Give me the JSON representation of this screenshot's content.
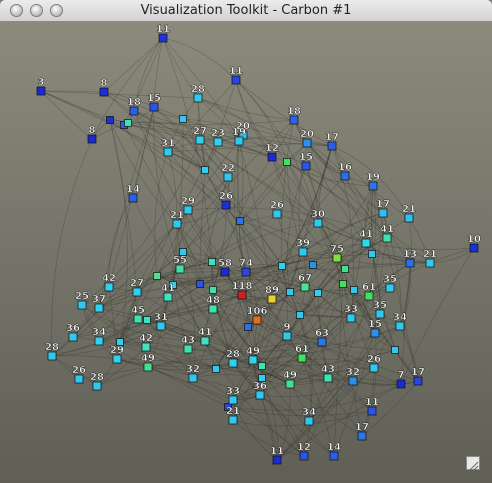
{
  "window": {
    "title": "Visualization Toolkit - Carbon #1"
  },
  "colors": {
    "edge": "#2c2b24",
    "label": "#ffffff"
  },
  "graph": {
    "vertices": [
      {
        "label": "11",
        "color": "#2233dd"
      },
      {
        "label": "3",
        "color": "#1a2bd0"
      },
      {
        "label": "8",
        "color": "#1a30d8"
      },
      {
        "label": "15",
        "color": "#2a55e8"
      },
      {
        "label": "18",
        "color": "#2a60e8"
      },
      {
        "label": "11",
        "color": "#2a45e0"
      },
      {
        "label": "28",
        "color": "#30c8ee"
      },
      {
        "label": "8",
        "color": "#1a2bd0"
      },
      {
        "label": "20",
        "color": "#30c0ee"
      },
      {
        "label": "18",
        "color": "#2a65e8"
      },
      {
        "label": "27",
        "color": "#30d0ee"
      },
      {
        "label": "23",
        "color": "#30d0ee"
      },
      {
        "label": "19",
        "color": "#30c8ee"
      },
      {
        "label": "31",
        "color": "#30c8ee"
      },
      {
        "label": "20",
        "color": "#2a90e8"
      },
      {
        "label": "17",
        "color": "#2a60e8"
      },
      {
        "label": "12",
        "color": "#1a2bd0"
      },
      {
        "label": "15",
        "color": "#2a55e8"
      },
      {
        "label": "16",
        "color": "#2a70e8"
      },
      {
        "label": "22",
        "color": "#30c8ee"
      },
      {
        "label": "19",
        "color": "#2a75e8"
      },
      {
        "label": "14",
        "color": "#2a60e8"
      },
      {
        "label": "29",
        "color": "#30c8ee"
      },
      {
        "label": "26",
        "color": "#1a30d8"
      },
      {
        "label": "17",
        "color": "#30c0ee"
      },
      {
        "label": "21",
        "color": "#30c0ee"
      },
      {
        "label": "10",
        "color": "#1a30d8"
      },
      {
        "label": "21",
        "color": "#30c8ee"
      },
      {
        "label": "26",
        "color": "#30c8ee"
      },
      {
        "label": "30",
        "color": "#30c8ee"
      },
      {
        "label": "41",
        "color": "#30d8ea"
      },
      {
        "label": "41",
        "color": "#40e0b0"
      },
      {
        "label": "13",
        "color": "#2a70e8"
      },
      {
        "label": "21",
        "color": "#30c8ee"
      },
      {
        "label": "39",
        "color": "#30c8ee"
      },
      {
        "label": "75",
        "color": "#80e040"
      },
      {
        "label": "55",
        "color": "#40e0a0"
      },
      {
        "label": "58",
        "color": "#1a2bd0"
      },
      {
        "label": "74",
        "color": "#2a45e0"
      },
      {
        "label": "42",
        "color": "#30d0ee"
      },
      {
        "label": "27",
        "color": "#30d0ee"
      },
      {
        "label": "67",
        "color": "#50e090"
      },
      {
        "label": "35",
        "color": "#30c8ee"
      },
      {
        "label": "25",
        "color": "#30c8ee"
      },
      {
        "label": "37",
        "color": "#30d0ee"
      },
      {
        "label": "41",
        "color": "#40e0c0"
      },
      {
        "label": "118",
        "color": "#d02020"
      },
      {
        "label": "89",
        "color": "#e8d030"
      },
      {
        "label": "61",
        "color": "#40e060"
      },
      {
        "label": "48",
        "color": "#40e0b0"
      },
      {
        "label": "45",
        "color": "#40e0b0"
      },
      {
        "label": "33",
        "color": "#30c8ee"
      },
      {
        "label": "35",
        "color": "#30c8ee"
      },
      {
        "label": "31",
        "color": "#30c8ee"
      },
      {
        "label": "106",
        "color": "#e07020"
      },
      {
        "label": "34",
        "color": "#30c8ee"
      },
      {
        "label": "36",
        "color": "#30c8ee"
      },
      {
        "label": "34",
        "color": "#30d0ee"
      },
      {
        "label": "15",
        "color": "#2a90e8"
      },
      {
        "label": "41",
        "color": "#40e0c0"
      },
      {
        "label": "42",
        "color": "#40e0c0"
      },
      {
        "label": "9",
        "color": "#30c8ee"
      },
      {
        "label": "63",
        "color": "#2a75e8"
      },
      {
        "label": "28",
        "color": "#30c8ee"
      },
      {
        "label": "29",
        "color": "#30d0ee"
      },
      {
        "label": "43",
        "color": "#40e0b0"
      },
      {
        "label": "61",
        "color": "#40e060"
      },
      {
        "label": "49",
        "color": "#40e090"
      },
      {
        "label": "28",
        "color": "#30d0ee"
      },
      {
        "label": "49",
        "color": "#30d0ee"
      },
      {
        "label": "26",
        "color": "#30c8ee"
      },
      {
        "label": "26",
        "color": "#30c8ee"
      },
      {
        "label": "28",
        "color": "#30c8ee"
      },
      {
        "label": "32",
        "color": "#30c8ee"
      },
      {
        "label": "49",
        "color": "#40e090"
      },
      {
        "label": "43",
        "color": "#40e0b0"
      },
      {
        "label": "32",
        "color": "#2a90e8"
      },
      {
        "label": "7",
        "color": "#1a2bd0"
      },
      {
        "label": "17",
        "color": "#2a45e0"
      },
      {
        "label": "33",
        "color": "#30c8ee"
      },
      {
        "label": "36",
        "color": "#30c8ee"
      },
      {
        "label": "11",
        "color": "#2a55e8"
      },
      {
        "label": "21",
        "color": "#30c8ee"
      },
      {
        "label": "34",
        "color": "#30c8ee"
      },
      {
        "label": "17",
        "color": "#2a75e8"
      },
      {
        "label": "11",
        "color": "#1a2bd0"
      },
      {
        "label": "12",
        "color": "#2a55e8"
      },
      {
        "label": "14",
        "color": "#2a60e8"
      }
    ],
    "extra_vertex_colors": [
      "#1a30d8",
      "#2a60e8",
      "#30c8ee",
      "#40e0b0",
      "#30d0ee",
      "#40e060",
      "#2a75e8",
      "#30c8ee",
      "#40e0c0",
      "#30d0ee",
      "#2a90e8",
      "#40e090",
      "#30c8ee",
      "#50e090",
      "#30d0ee",
      "#2a55e8",
      "#40e0b0",
      "#30c8ee",
      "#30d0ee",
      "#40e060",
      "#30c8ee",
      "#2a70e8",
      "#30c8ee",
      "#40e0c0",
      "#30d0ee",
      "#30c8ee",
      "#40e0b0",
      "#30c8ee",
      "#30d0ee",
      "#2a45e0"
    ],
    "edge_count": 520
  }
}
